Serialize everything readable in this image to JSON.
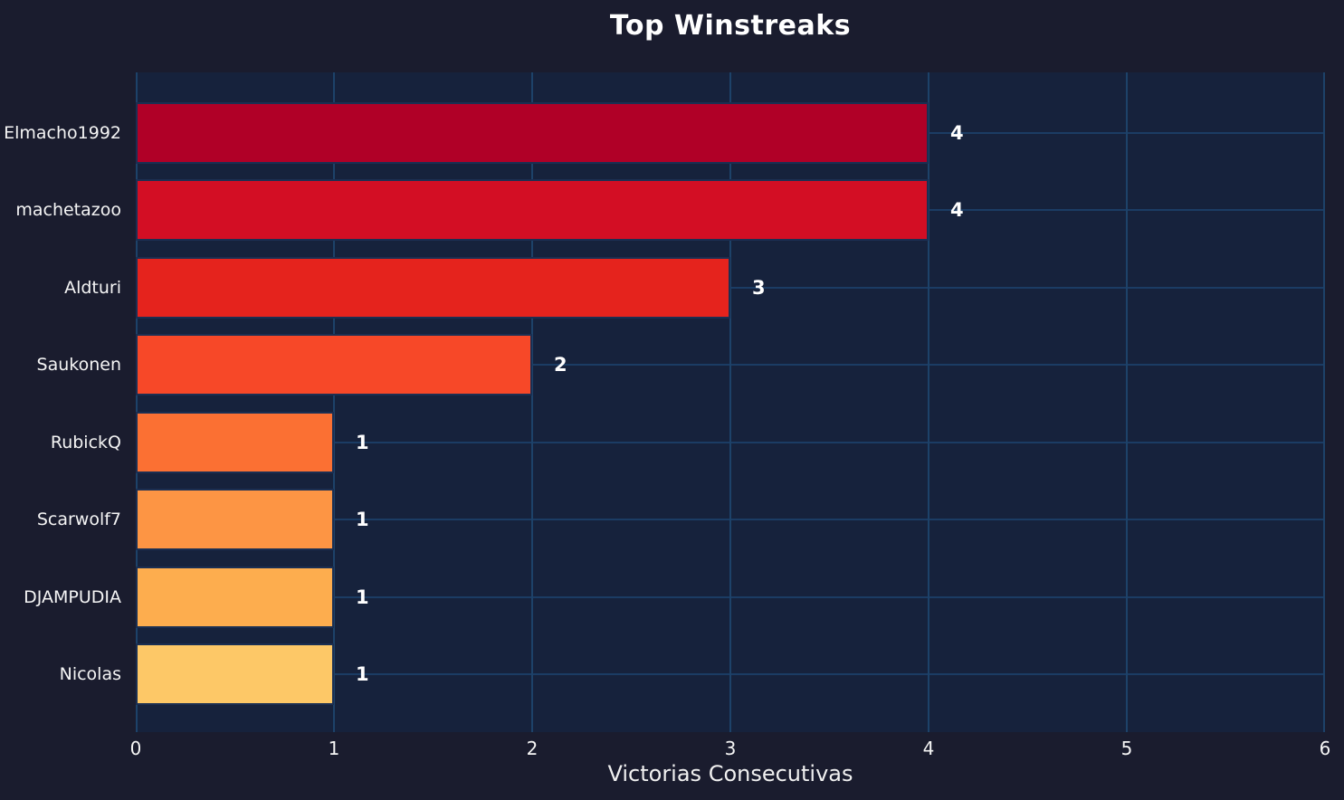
{
  "chart_data": {
    "type": "bar",
    "orientation": "horizontal",
    "title": "Top Winstreaks",
    "xlabel": "Victorias Consecutivas",
    "ylabel": "",
    "categories": [
      "Elmacho1992",
      "machetazoo",
      "Aldturi",
      "Saukonen",
      "RubickQ",
      "Scarwolf7",
      "DJAMPUDIA",
      "Nicolas"
    ],
    "values": [
      4,
      4,
      3,
      2,
      1,
      1,
      1,
      1
    ],
    "value_labels": [
      "4",
      "4",
      "3",
      "2",
      "1",
      "1",
      "1",
      "1"
    ],
    "bar_colors": [
      "#b00027",
      "#d30e24",
      "#e5231d",
      "#f74828",
      "#fb7033",
      "#fd9544",
      "#fdad4e",
      "#fdc867"
    ],
    "x_ticks": [
      "0",
      "1",
      "2",
      "3",
      "4",
      "5",
      "6"
    ],
    "xlim": [
      0,
      6
    ],
    "grid": true,
    "legend": null,
    "colors": {
      "figure_background": "#1a1c2e",
      "plot_background": "#16223c",
      "vertical_gridline": "#1d4269",
      "horizontal_gridline": "#1b3c64",
      "bar_edge": "#1b2f52",
      "text": "#ffffff"
    }
  }
}
